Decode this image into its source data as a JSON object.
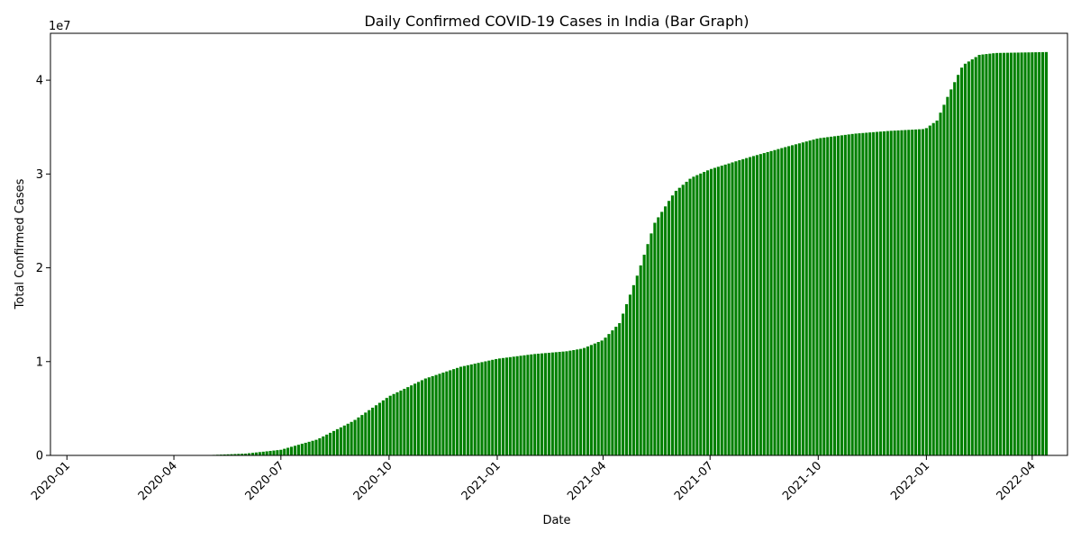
{
  "chart_data": {
    "type": "bar",
    "title": "Daily Confirmed COVID-19 Cases in India (Bar Graph)",
    "xlabel": "Date",
    "ylabel": "Total Confirmed Cases",
    "y_scale_label": "1e7",
    "y_multiplier": 10000000,
    "ylim": [
      0,
      4.5
    ],
    "xlim": [
      "2019-12-18",
      "2022-05-01"
    ],
    "y_ticks": [
      0,
      1,
      2,
      3,
      4
    ],
    "x_ticks": [
      "2020-01",
      "2020-04",
      "2020-07",
      "2020-10",
      "2021-01",
      "2021-04",
      "2021-07",
      "2021-10",
      "2022-01",
      "2022-04"
    ],
    "x_tick_dates": [
      "2020-01-01",
      "2020-04-01",
      "2020-07-01",
      "2020-10-01",
      "2021-01-01",
      "2021-04-01",
      "2021-07-01",
      "2021-10-01",
      "2022-01-01",
      "2022-04-01"
    ],
    "bar_color": "#008000",
    "grid": false,
    "bar_interval": "3 days",
    "series": [
      {
        "x": [
          "2020-01-30",
          "2020-03-01",
          "2020-04-01",
          "2020-05-01",
          "2020-06-01",
          "2020-07-01",
          "2020-08-01",
          "2020-09-01",
          "2020-10-01",
          "2020-11-01",
          "2020-12-01",
          "2021-01-01",
          "2021-02-01",
          "2021-03-01",
          "2021-03-15",
          "2021-04-01",
          "2021-04-15",
          "2021-05-01",
          "2021-05-15",
          "2021-06-01",
          "2021-06-15",
          "2021-07-01",
          "2021-08-01",
          "2021-09-01",
          "2021-10-01",
          "2021-11-01",
          "2021-12-01",
          "2021-12-31",
          "2022-01-10",
          "2022-01-20",
          "2022-02-01",
          "2022-02-15",
          "2022-03-01",
          "2022-04-13"
        ],
        "values": [
          0.0,
          0.0,
          0.0002,
          0.0037,
          0.019,
          0.06,
          0.17,
          0.37,
          0.63,
          0.82,
          0.945,
          1.03,
          1.08,
          1.11,
          1.14,
          1.23,
          1.41,
          1.95,
          2.48,
          2.81,
          2.96,
          3.05,
          3.17,
          3.28,
          3.38,
          3.43,
          3.46,
          3.48,
          3.57,
          3.85,
          4.16,
          4.27,
          4.29,
          4.3
        ]
      }
    ]
  }
}
